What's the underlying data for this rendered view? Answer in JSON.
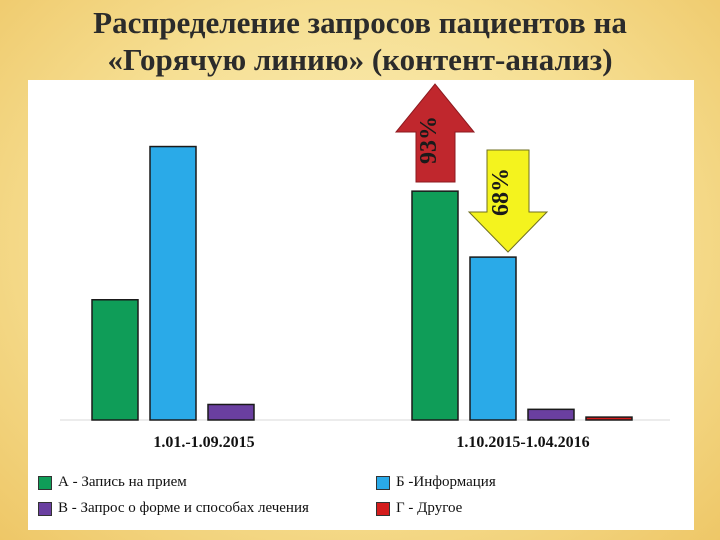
{
  "header": {
    "title_line1": "Распределение запросов пациентов на",
    "title_line2": "«Горячую линию» (контент-анализ)"
  },
  "chart_data": {
    "type": "bar",
    "categories": [
      "1.01.-1.09.2015",
      "1.10.2015-1.04.2016"
    ],
    "series": [
      {
        "name": "А - Запись на прием",
        "color": "#0f9d58",
        "values": [
          124,
          236
        ]
      },
      {
        "name": "Б -Информация",
        "color": "#2aaae8",
        "values": [
          282,
          168
        ]
      },
      {
        "name": "В - Запрос о форме и способах лечения",
        "color": "#6a3fa0",
        "values": [
          16,
          11
        ]
      },
      {
        "name": "Г - Другое",
        "color": "#d41c1c",
        "values": [
          0,
          3
        ]
      }
    ],
    "ylim": [
      0,
      330
    ],
    "grid": false,
    "legend_position": "bottom",
    "annotations": [
      {
        "text": "93%",
        "arrow": "up",
        "color": "#c0272d"
      },
      {
        "text": "68%",
        "arrow": "down",
        "color": "#f4f31e"
      }
    ]
  }
}
